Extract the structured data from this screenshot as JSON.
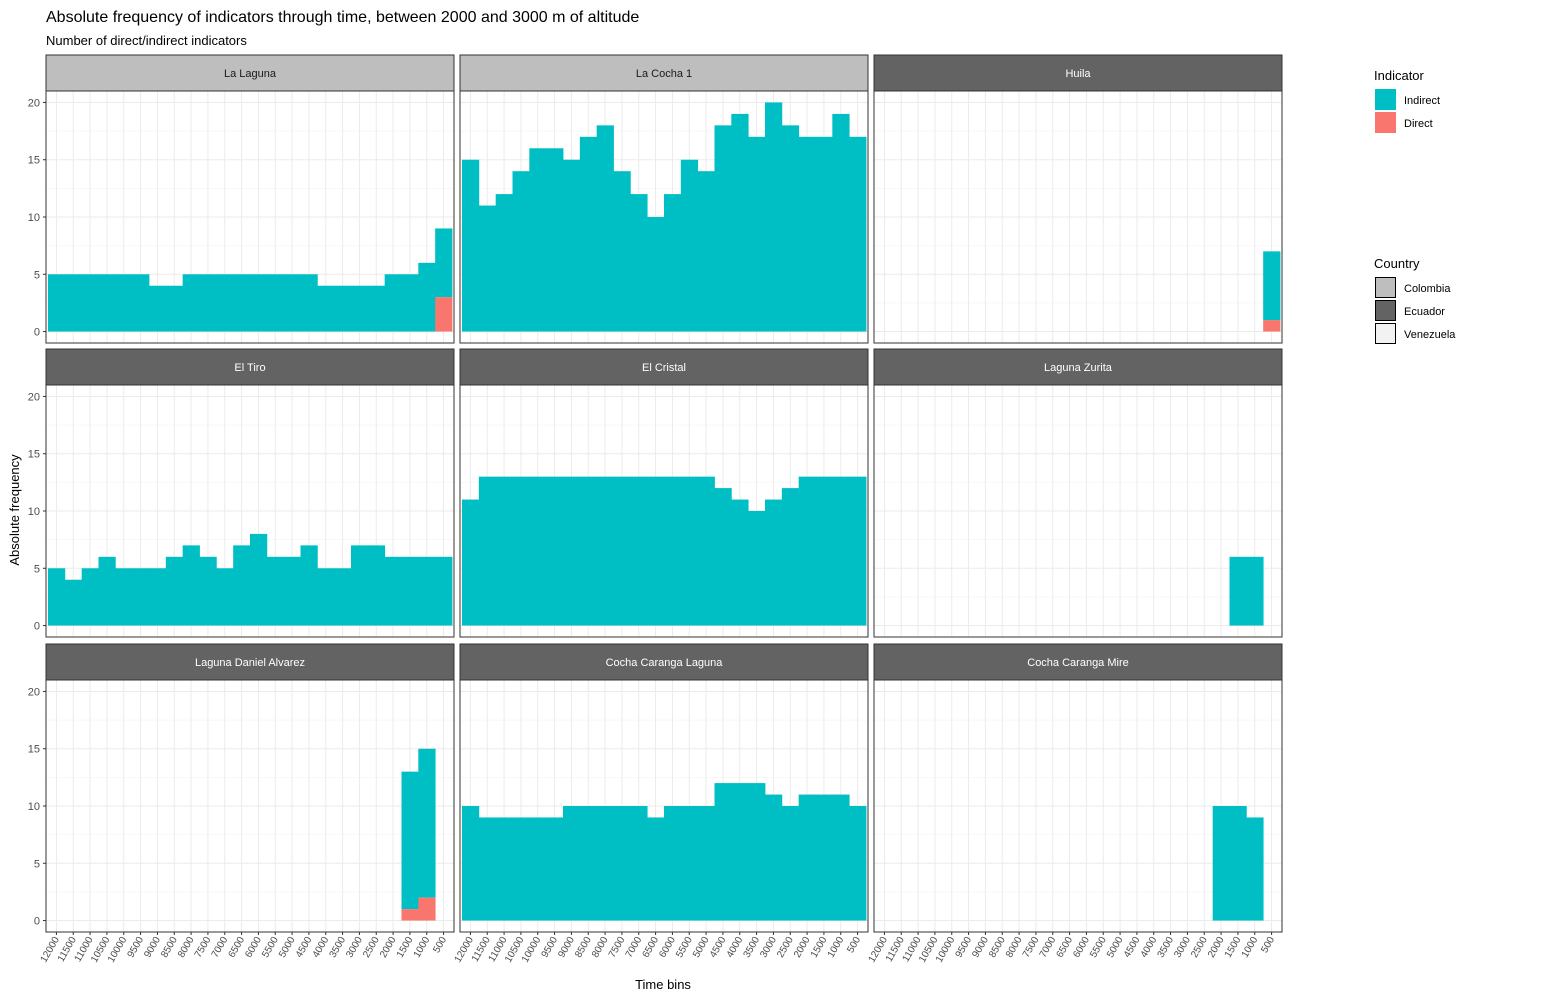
{
  "chart_data": {
    "type": "bar",
    "title": "Absolute frequency of indicators through time, between 2000 and 3000 m of altitude",
    "subtitle": "Number of direct/indirect indicators",
    "xlabel": "Time bins",
    "ylabel": "Absolute frequency",
    "ylim": [
      -1,
      21
    ],
    "yticks": [
      0,
      5,
      10,
      15,
      20
    ],
    "categories": [
      "12000",
      "11500",
      "11000",
      "10500",
      "10000",
      "9500",
      "9000",
      "8500",
      "8000",
      "7500",
      "7000",
      "6500",
      "6000",
      "5500",
      "5000",
      "4500",
      "4000",
      "3500",
      "3000",
      "2500",
      "2000",
      "1500",
      "1000",
      "500"
    ],
    "grid": true,
    "stacked": true,
    "legends": [
      {
        "title": "Indicator",
        "entries": [
          {
            "label": "Indirect",
            "color": "#00BFC4"
          },
          {
            "label": "Direct",
            "color": "#F8766D"
          }
        ]
      },
      {
        "title": "Country",
        "entries": [
          {
            "label": "Colombia",
            "color": "#BEBEBE"
          },
          {
            "label": "Ecuador",
            "color": "#636363"
          },
          {
            "label": "Venezuela",
            "color": "#F2F2F2"
          }
        ]
      }
    ],
    "legend_position": "right",
    "panels": [
      {
        "name": "La Laguna",
        "country": "Colombia",
        "indirect": [
          5,
          5,
          5,
          5,
          5,
          5,
          4,
          4,
          5,
          5,
          5,
          5,
          5,
          5,
          5,
          5,
          4,
          4,
          4,
          4,
          5,
          5,
          6,
          6
        ],
        "direct": [
          0,
          0,
          0,
          0,
          0,
          0,
          0,
          0,
          0,
          0,
          0,
          0,
          0,
          0,
          0,
          0,
          0,
          0,
          0,
          0,
          0,
          0,
          0,
          3
        ]
      },
      {
        "name": "La Cocha 1",
        "country": "Colombia",
        "indirect": [
          15,
          11,
          12,
          14,
          16,
          16,
          15,
          17,
          18,
          14,
          12,
          10,
          12,
          15,
          14,
          18,
          19,
          17,
          20,
          18,
          17,
          17,
          19,
          17
        ],
        "direct": [
          0,
          0,
          0,
          0,
          0,
          0,
          0,
          0,
          0,
          0,
          0,
          0,
          0,
          0,
          0,
          0,
          0,
          0,
          0,
          0,
          0,
          0,
          0,
          0
        ]
      },
      {
        "name": "Huila",
        "country": "Ecuador",
        "indirect": [
          0,
          0,
          0,
          0,
          0,
          0,
          0,
          0,
          0,
          0,
          0,
          0,
          0,
          0,
          0,
          0,
          0,
          0,
          0,
          0,
          0,
          0,
          0,
          6
        ],
        "direct": [
          0,
          0,
          0,
          0,
          0,
          0,
          0,
          0,
          0,
          0,
          0,
          0,
          0,
          0,
          0,
          0,
          0,
          0,
          0,
          0,
          0,
          0,
          0,
          1
        ]
      },
      {
        "name": "El Tiro",
        "country": "Ecuador",
        "indirect": [
          5,
          4,
          5,
          6,
          5,
          5,
          5,
          6,
          7,
          6,
          5,
          7,
          8,
          6,
          6,
          7,
          5,
          5,
          7,
          7,
          6,
          6,
          6,
          6
        ],
        "direct": [
          0,
          0,
          0,
          0,
          0,
          0,
          0,
          0,
          0,
          0,
          0,
          0,
          0,
          0,
          0,
          0,
          0,
          0,
          0,
          0,
          0,
          0,
          0,
          0
        ]
      },
      {
        "name": "El Cristal",
        "country": "Ecuador",
        "indirect": [
          11,
          13,
          13,
          13,
          13,
          13,
          13,
          13,
          13,
          13,
          13,
          13,
          13,
          13,
          13,
          12,
          11,
          10,
          11,
          12,
          13,
          13,
          13,
          13
        ],
        "direct": [
          0,
          0,
          0,
          0,
          0,
          0,
          0,
          0,
          0,
          0,
          0,
          0,
          0,
          0,
          0,
          0,
          0,
          0,
          0,
          0,
          0,
          0,
          0,
          0
        ]
      },
      {
        "name": "Laguna Zurita",
        "country": "Ecuador",
        "indirect": [
          0,
          0,
          0,
          0,
          0,
          0,
          0,
          0,
          0,
          0,
          0,
          0,
          0,
          0,
          0,
          0,
          0,
          0,
          0,
          0,
          0,
          6,
          6,
          0
        ],
        "direct": [
          0,
          0,
          0,
          0,
          0,
          0,
          0,
          0,
          0,
          0,
          0,
          0,
          0,
          0,
          0,
          0,
          0,
          0,
          0,
          0,
          0,
          0,
          0,
          0
        ]
      },
      {
        "name": "Laguna Daniel Alvarez",
        "country": "Ecuador",
        "indirect": [
          0,
          0,
          0,
          0,
          0,
          0,
          0,
          0,
          0,
          0,
          0,
          0,
          0,
          0,
          0,
          0,
          0,
          0,
          0,
          0,
          0,
          12,
          13,
          0
        ],
        "direct": [
          0,
          0,
          0,
          0,
          0,
          0,
          0,
          0,
          0,
          0,
          0,
          0,
          0,
          0,
          0,
          0,
          0,
          0,
          0,
          0,
          0,
          1,
          2,
          0
        ]
      },
      {
        "name": "Cocha Caranga Laguna",
        "country": "Ecuador",
        "indirect": [
          10,
          9,
          9,
          9,
          9,
          9,
          10,
          10,
          10,
          10,
          10,
          9,
          10,
          10,
          10,
          12,
          12,
          12,
          11,
          10,
          11,
          11,
          11,
          10
        ],
        "direct": [
          0,
          0,
          0,
          0,
          0,
          0,
          0,
          0,
          0,
          0,
          0,
          0,
          0,
          0,
          0,
          0,
          0,
          0,
          0,
          0,
          0,
          0,
          0,
          0
        ]
      },
      {
        "name": "Cocha Caranga Mire",
        "country": "Ecuador",
        "indirect": [
          0,
          0,
          0,
          0,
          0,
          0,
          0,
          0,
          0,
          0,
          0,
          0,
          0,
          0,
          0,
          0,
          0,
          0,
          0,
          0,
          10,
          10,
          9,
          0
        ],
        "direct": [
          0,
          0,
          0,
          0,
          0,
          0,
          0,
          0,
          0,
          0,
          0,
          0,
          0,
          0,
          0,
          0,
          0,
          0,
          0,
          0,
          0,
          0,
          0,
          0
        ]
      }
    ]
  }
}
